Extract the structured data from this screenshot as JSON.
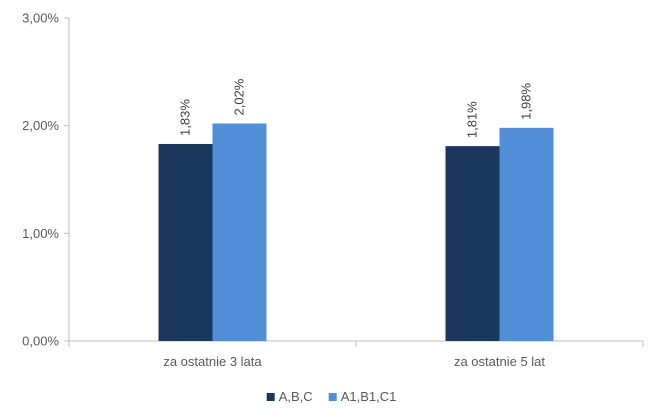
{
  "chart_data": {
    "type": "bar",
    "categories": [
      "za ostatnie 3 lata",
      "za ostatnie 5 lat"
    ],
    "series": [
      {
        "name": "A,B,C",
        "color": "#1b375c",
        "values": [
          1.83,
          1.81
        ],
        "labels": [
          "1,83%",
          "1,81%"
        ]
      },
      {
        "name": "A1,B1,C1",
        "color": "#528ed8",
        "values": [
          2.02,
          1.98
        ],
        "labels": [
          "2,02%",
          "1,98%"
        ]
      }
    ],
    "ylim": [
      0,
      3
    ],
    "yticks": [
      0,
      1,
      2,
      3
    ],
    "ytick_labels": [
      "0,00%",
      "1,00%",
      "2,00%",
      "3,00%"
    ],
    "title": "",
    "xlabel": "",
    "ylabel": "",
    "grid": false,
    "legend_position": "bottom",
    "axis_color": "#bfbfbf"
  }
}
